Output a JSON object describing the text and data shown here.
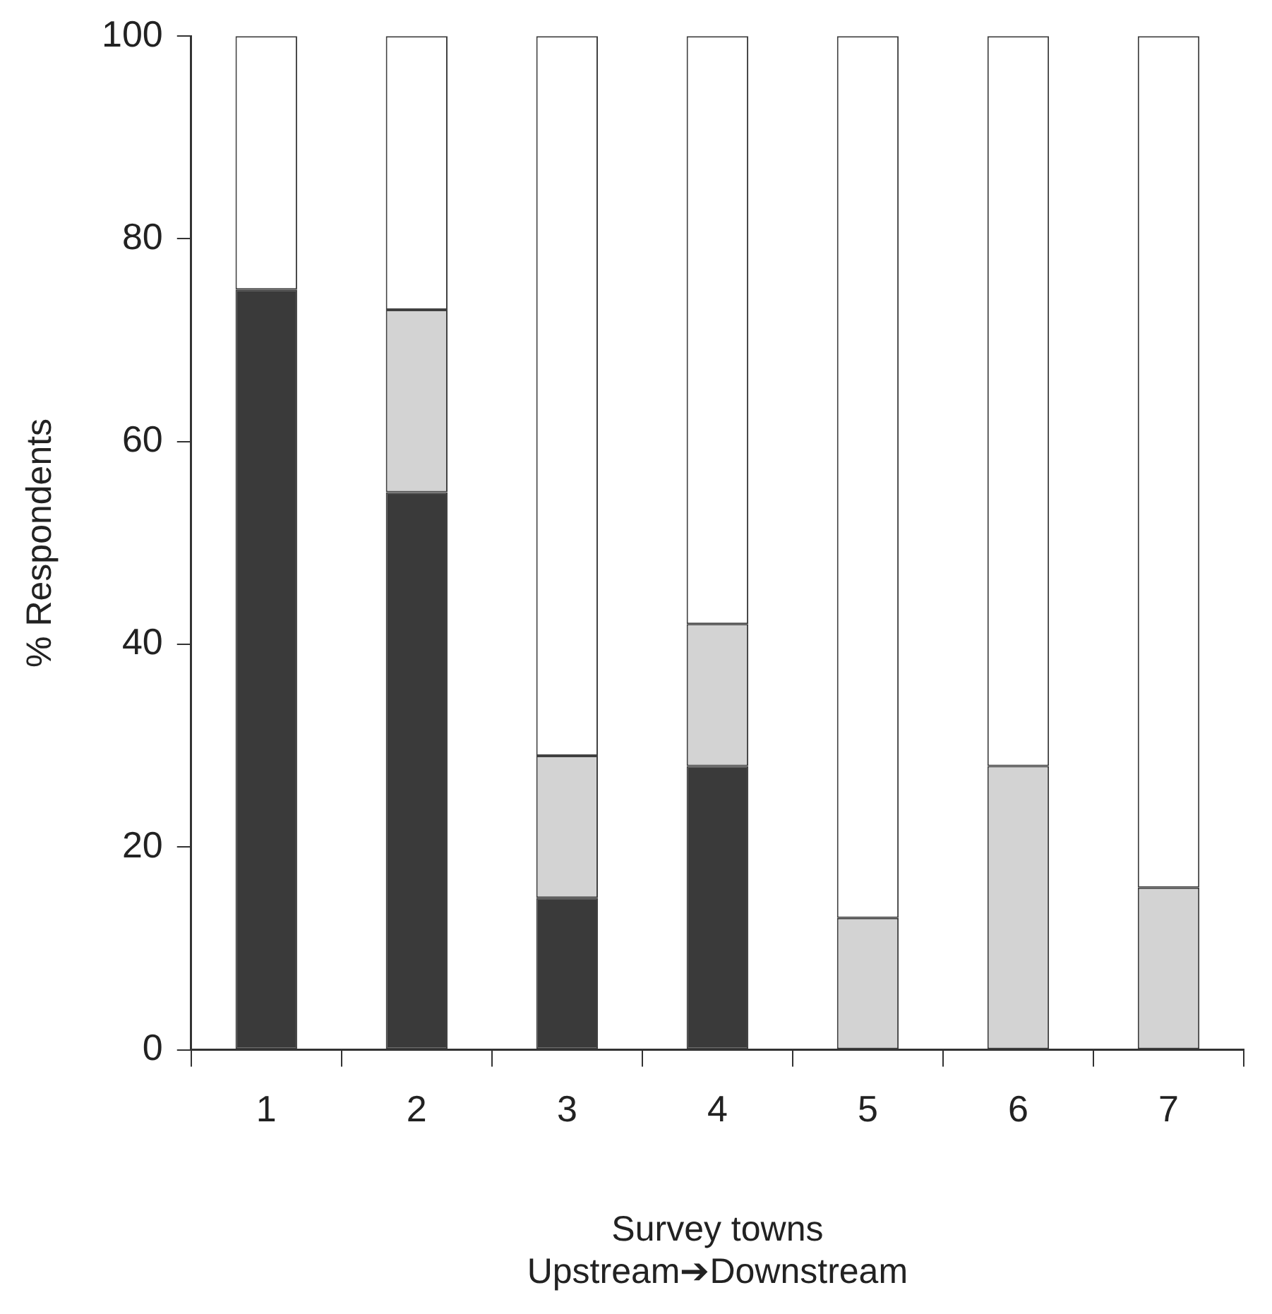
{
  "chart_data": {
    "type": "bar",
    "stacked": true,
    "xlabel": "Survey towns\nUpstream➔Downstream",
    "ylabel": "% Respondents",
    "categories": [
      "1",
      "2",
      "3",
      "4",
      "5",
      "6",
      "7"
    ],
    "series": [
      {
        "color": "#3a3a3a",
        "values": [
          75,
          55,
          15,
          28,
          0,
          0,
          0
        ]
      },
      {
        "color": "#d3d3d3",
        "values": [
          0,
          18,
          14,
          14,
          13,
          28,
          16
        ]
      },
      {
        "color": "#ffffff",
        "values": [
          25,
          27,
          71,
          58,
          87,
          72,
          84
        ]
      }
    ],
    "ylim": [
      0,
      100
    ],
    "yticks": [
      0,
      20,
      40,
      60,
      80,
      100
    ],
    "grid": false,
    "legend": false
  }
}
